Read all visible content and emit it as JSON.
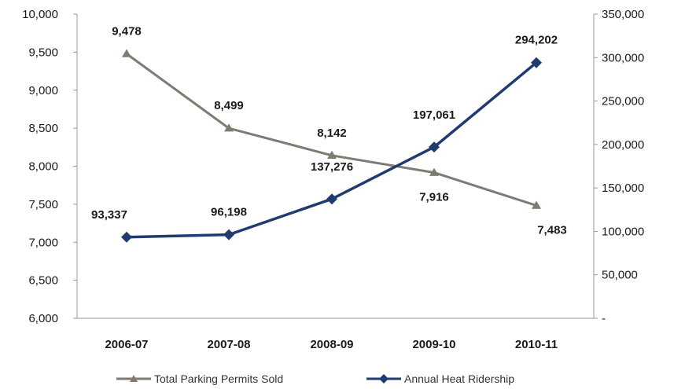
{
  "chart_data": {
    "type": "line",
    "categories": [
      "2006-07",
      "2007-08",
      "2008-09",
      "2009-10",
      "2010-11"
    ],
    "series": [
      {
        "name": "Total Parking Permits Sold",
        "axis": "left",
        "color": "#7f7a72",
        "marker": "triangle",
        "values": [
          9478,
          8499,
          8142,
          7916,
          7483
        ],
        "labels": [
          "9,478",
          "8,499",
          "8,142",
          "7,916",
          "7,483"
        ]
      },
      {
        "name": "Annual Heat Ridership",
        "axis": "right",
        "color": "#1f3b70",
        "marker": "diamond",
        "values": [
          93337,
          96198,
          137276,
          197061,
          294202
        ],
        "labels": [
          "93,337",
          "96,198",
          "137,276",
          "197,061",
          "294,202"
        ]
      }
    ],
    "y_left": {
      "range": [
        6000,
        10000
      ],
      "ticks": [
        10000,
        9500,
        9000,
        8500,
        8000,
        7500,
        7000,
        6500,
        6000
      ],
      "tick_labels": [
        "10,000",
        "9,500",
        "9,000",
        "8,500",
        "8,000",
        "7,500",
        "7,000",
        "6,500",
        "6,000"
      ]
    },
    "y_right": {
      "range": [
        0,
        350000
      ],
      "ticks": [
        350000,
        300000,
        250000,
        200000,
        150000,
        100000,
        50000,
        0
      ],
      "tick_labels": [
        "350,000",
        "300,000",
        "250,000",
        "200,000",
        "150,000",
        "100,000",
        "50,000",
        "-"
      ]
    },
    "grid": false,
    "legend_position": "bottom"
  }
}
